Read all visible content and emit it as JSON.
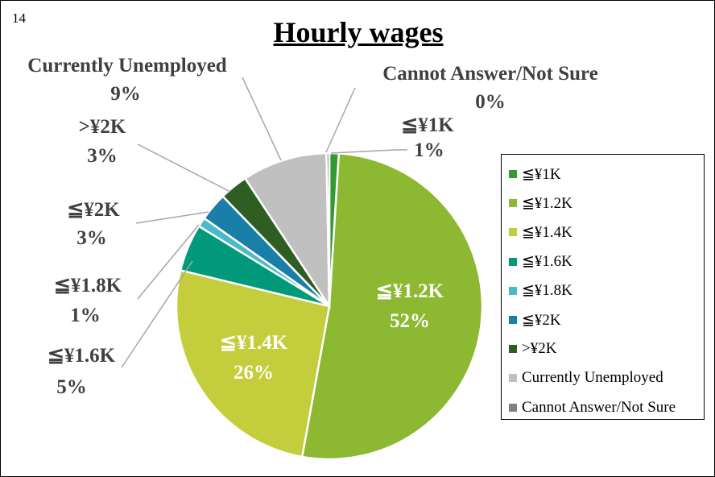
{
  "page_number": "14",
  "chart_data": {
    "type": "pie",
    "title": "Hourly wages",
    "slices": [
      {
        "label": "≦¥1K",
        "value": 1,
        "value_label": "1%",
        "color": "#339933"
      },
      {
        "label": "≦¥1.2K",
        "value": 52,
        "value_label": "52%",
        "color": "#8cb832"
      },
      {
        "label": "≦¥1.4K",
        "value": 26,
        "value_label": "26%",
        "color": "#c4ce3c"
      },
      {
        "label": "≦¥1.6K",
        "value": 5,
        "value_label": "5%",
        "color": "#00997a"
      },
      {
        "label": "≦¥1.8K",
        "value": 1,
        "value_label": "1%",
        "color": "#4db8c7"
      },
      {
        "label": "≦¥2K",
        "value": 3,
        "value_label": "3%",
        "color": "#1a7fa8"
      },
      {
        "label": ">¥2K",
        "value": 3,
        "value_label": "3%",
        "color": "#2e5e22"
      },
      {
        "label": "Currently Unemployed",
        "value": 9,
        "value_label": "9%",
        "color": "#c0c0c0"
      },
      {
        "label": "Cannot Answer/Not Sure",
        "value": 0.3,
        "value_label": "0%",
        "color": "#808080"
      }
    ],
    "legend_position": "right"
  }
}
